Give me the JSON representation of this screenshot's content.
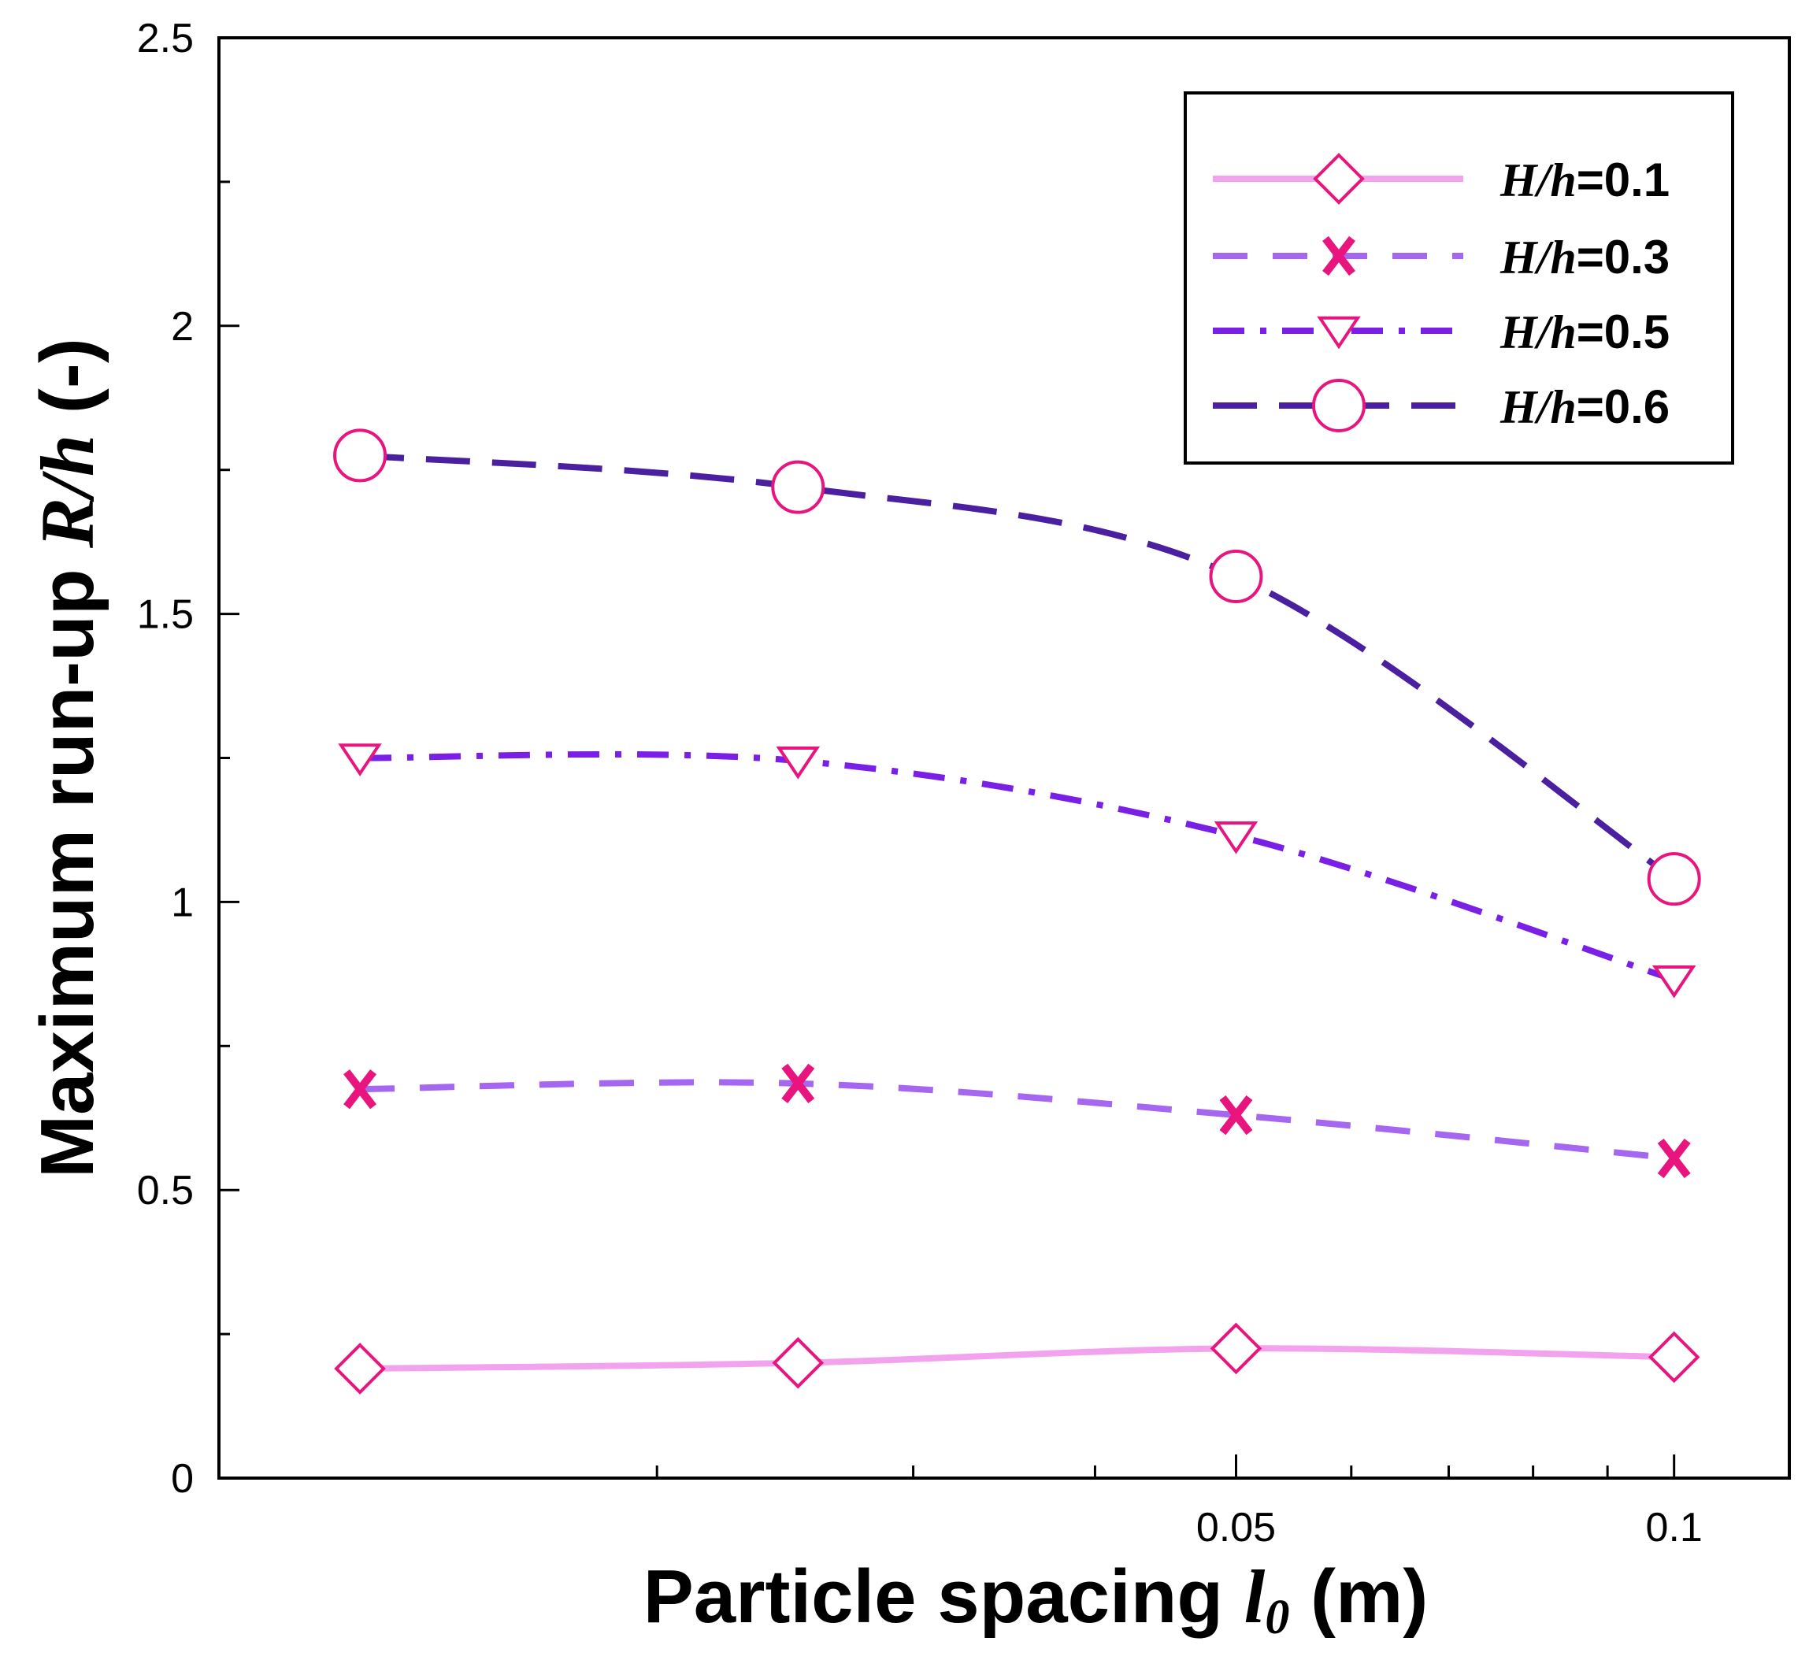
{
  "chart_data": {
    "type": "line",
    "title": "",
    "xlabel": {
      "prefix": "Particle spacing ",
      "symbol": "l",
      "subscript": "0",
      "suffix": " (m)"
    },
    "ylabel": {
      "prefix": "Maximum run-up ",
      "symbol": "R/h",
      "suffix": " (-)"
    },
    "xscale": "log",
    "xlim": [
      0.01,
      0.12
    ],
    "ylim": [
      0,
      2.5
    ],
    "x": [
      0.0125,
      0.025,
      0.05,
      0.1
    ],
    "x_tick_labels": [
      {
        "value": 0.05,
        "label": "0.05"
      },
      {
        "value": 0.1,
        "label": "0.1"
      }
    ],
    "x_minor_ticks": [
      0.02,
      0.03,
      0.04,
      0.06,
      0.07,
      0.08,
      0.09
    ],
    "y_tick_labels": [
      {
        "value": 0,
        "label": "0"
      },
      {
        "value": 0.5,
        "label": "0.5"
      },
      {
        "value": 1,
        "label": "1"
      },
      {
        "value": 1.5,
        "label": "1.5"
      },
      {
        "value": 2,
        "label": "2"
      },
      {
        "value": 2.5,
        "label": "2.5"
      }
    ],
    "legend_position": "top-right",
    "series": [
      {
        "name": "H/h=0.1",
        "symbol": "H/h",
        "value_label": "=0.1",
        "values": [
          0.19,
          0.2,
          0.225,
          0.21
        ],
        "marker": "diamond",
        "line_style": "solid",
        "color": "#f3a3ee"
      },
      {
        "name": "H/h=0.3",
        "symbol": "H/h",
        "value_label": "=0.3",
        "values": [
          0.675,
          0.685,
          0.63,
          0.555
        ],
        "marker": "x",
        "line_style": "dashed",
        "color": "#a566f0"
      },
      {
        "name": "H/h=0.5",
        "symbol": "H/h",
        "value_label": "=0.5",
        "values": [
          1.25,
          1.245,
          1.115,
          0.865
        ],
        "marker": "triangle-down",
        "line_style": "dashdot",
        "color": "#7a1fe6"
      },
      {
        "name": "H/h=0.6",
        "symbol": "H/h",
        "value_label": "=0.6",
        "values": [
          1.775,
          1.72,
          1.565,
          1.04
        ],
        "marker": "circle",
        "line_style": "longdash",
        "color": "#4a1fa0"
      }
    ],
    "marker_color": "#e8157e"
  }
}
